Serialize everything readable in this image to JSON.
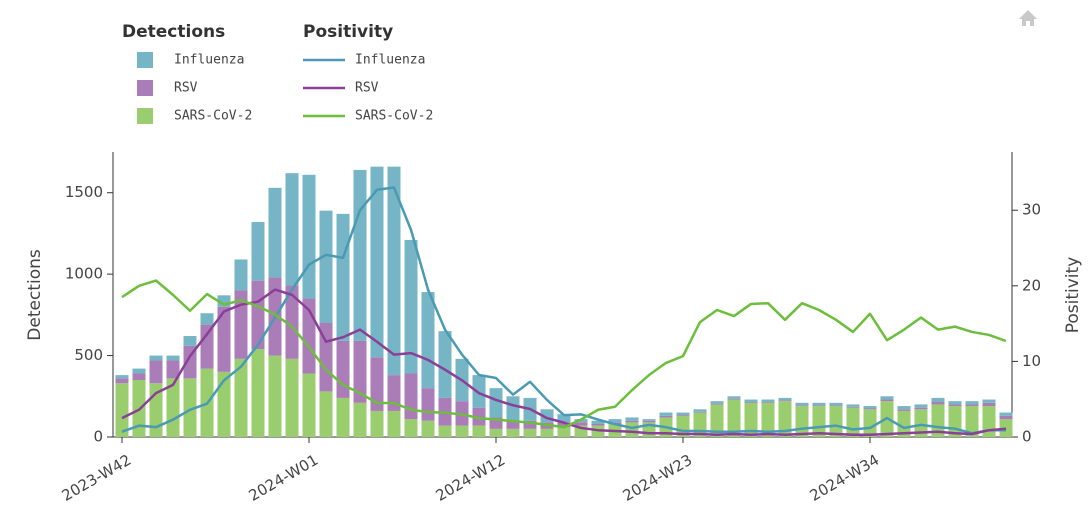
{
  "chart_data": {
    "type": "bar",
    "categories": [
      "2023-W42",
      null,
      null,
      null,
      null,
      null,
      null,
      null,
      null,
      null,
      null,
      "2024-W01",
      null,
      null,
      null,
      null,
      null,
      null,
      null,
      null,
      null,
      null,
      "2024-W12",
      null,
      null,
      null,
      null,
      null,
      null,
      null,
      null,
      null,
      null,
      "2024-W23",
      null,
      null,
      null,
      null,
      null,
      null,
      null,
      null,
      null,
      null,
      "2024-W34",
      null,
      null,
      null,
      null,
      null,
      null,
      null,
      null
    ],
    "y_label": "Detections",
    "y2_label": "Positivity",
    "ylim": [
      0,
      1750
    ],
    "yticks": [
      0,
      500,
      1000,
      1500
    ],
    "y2lim": [
      0,
      37.7
    ],
    "y2ticks": [
      0,
      10,
      20,
      30
    ],
    "legend": [
      {
        "title": "Detections",
        "type": "bar"
      },
      {
        "title": "Positivity",
        "type": "line"
      }
    ],
    "series": [
      {
        "name": "Influenza",
        "type": "bar",
        "color": "#76b5c5",
        "values": [
          20,
          30,
          30,
          30,
          60,
          70,
          70,
          190,
          360,
          550,
          690,
          760,
          690,
          780,
          1050,
          1170,
          1280,
          820,
          590,
          410,
          260,
          200,
          180,
          150,
          140,
          80,
          50,
          20,
          20,
          20,
          20,
          10,
          20,
          15,
          15,
          15,
          15,
          15,
          15,
          15,
          15,
          15,
          15,
          15,
          15,
          20,
          20,
          20,
          25,
          20,
          20,
          20,
          20
        ]
      },
      {
        "name": "RSV",
        "type": "bar",
        "color": "#ab7db8",
        "values": [
          30,
          40,
          140,
          110,
          200,
          270,
          400,
          420,
          420,
          480,
          450,
          460,
          420,
          350,
          380,
          330,
          220,
          280,
          200,
          170,
          150,
          110,
          70,
          50,
          50,
          40,
          30,
          20,
          10,
          10,
          10,
          10,
          10,
          5,
          5,
          5,
          5,
          5,
          5,
          5,
          5,
          5,
          5,
          5,
          5,
          10,
          10,
          10,
          15,
          10,
          10,
          20,
          20
        ]
      },
      {
        "name": "SARS-CoV-2",
        "type": "bar",
        "color": "#99cd6d",
        "values": [
          330,
          350,
          330,
          360,
          360,
          420,
          400,
          480,
          540,
          500,
          480,
          390,
          280,
          240,
          210,
          160,
          160,
          110,
          100,
          70,
          70,
          70,
          50,
          50,
          50,
          50,
          60,
          70,
          70,
          80,
          90,
          90,
          120,
          130,
          150,
          200,
          230,
          210,
          210,
          220,
          190,
          190,
          190,
          180,
          170,
          220,
          160,
          170,
          200,
          190,
          190,
          190,
          110
        ]
      },
      {
        "name": "Influenza",
        "type": "line",
        "axis": "y2",
        "color": "#4a9ab4",
        "values": [
          0.7,
          1.5,
          1.3,
          2.3,
          3.6,
          4.4,
          7.5,
          9.3,
          12.2,
          15.8,
          19.5,
          22.8,
          24.1,
          23.7,
          30,
          32.7,
          33,
          27.4,
          19.5,
          14.2,
          10.9,
          8.2,
          7.8,
          5.6,
          7.3,
          4.9,
          2.9,
          3,
          2.3,
          1.7,
          1.2,
          1.6,
          1.3,
          0.8,
          0.8,
          0.7,
          0.7,
          0.8,
          0.7,
          0.8,
          1.1,
          1.3,
          1.5,
          1,
          1.2,
          2.5,
          1.2,
          1.6,
          1.3,
          1.1,
          0.5,
          0.9,
          0.9
        ]
      },
      {
        "name": "RSV",
        "type": "line",
        "axis": "y2",
        "color": "#8b3f97",
        "values": [
          2.5,
          3.6,
          5.8,
          6.9,
          10.7,
          13.6,
          16.6,
          17.5,
          17.9,
          19.5,
          18.8,
          16.8,
          12.6,
          13.2,
          14.2,
          12.6,
          10.9,
          11.1,
          10.2,
          8.9,
          7.5,
          5.8,
          4.9,
          4.2,
          3.7,
          2.5,
          1.9,
          1.2,
          0.9,
          0.8,
          0.7,
          0.5,
          0.5,
          0.4,
          0.4,
          0.3,
          0.4,
          0.3,
          0.4,
          0.3,
          0.4,
          0.5,
          0.4,
          0.3,
          0.3,
          0.4,
          0.5,
          0.6,
          0.7,
          0.5,
          0.4,
          0.9,
          1.1
        ]
      },
      {
        "name": "SARS-CoV-2",
        "type": "line",
        "axis": "y2",
        "color": "#6cbe3b",
        "values": [
          18.5,
          20,
          20.7,
          18.8,
          16.7,
          18.9,
          17.5,
          18.1,
          17.3,
          16.2,
          14.6,
          11.9,
          8.9,
          6.9,
          5.8,
          4.5,
          4.5,
          3.6,
          3.3,
          3.2,
          3,
          2.5,
          2.3,
          2.1,
          1.9,
          1.6,
          1.3,
          2.3,
          3.6,
          4,
          6.2,
          8.2,
          9.8,
          10.7,
          15.2,
          16.8,
          16,
          17.6,
          17.7,
          15.5,
          17.7,
          16.8,
          15.5,
          13.9,
          16.3,
          12.8,
          14.2,
          15.8,
          14.2,
          14.6,
          13.9,
          13.5,
          12.7
        ]
      }
    ]
  }
}
